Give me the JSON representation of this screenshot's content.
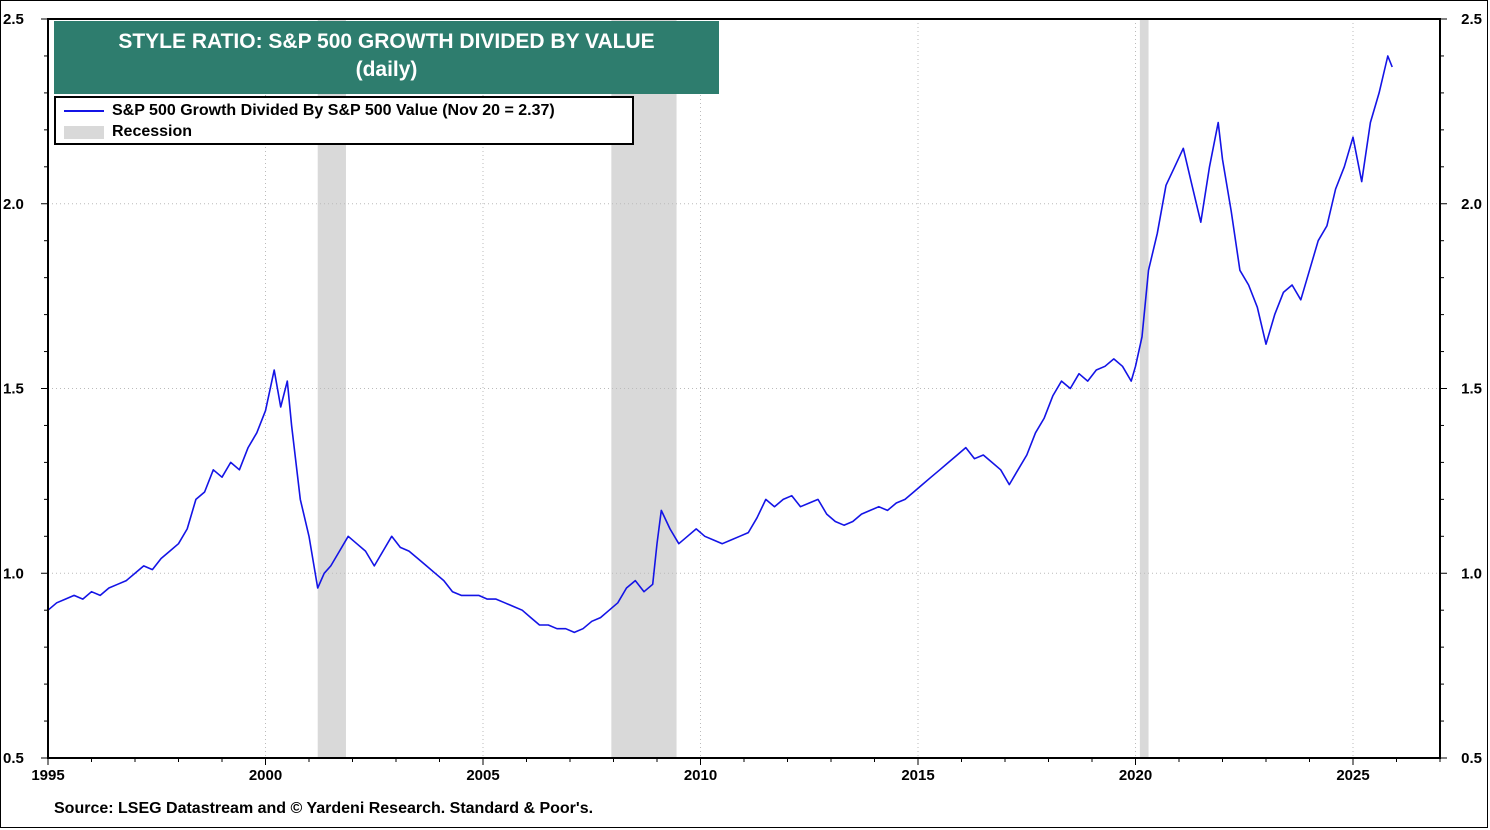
{
  "title": {
    "line1": "STYLE RATIO: S&P 500 GROWTH DIVIDED BY VALUE",
    "line2": "(daily)"
  },
  "legend": {
    "series_label": "S&P 500 Growth Divided By S&P 500 Value (Nov 20 = 2.37)",
    "recession_label": "Recession"
  },
  "source": "Source: LSEG Datastream and © Yardeni Research. Standard & Poor's.",
  "colors": {
    "line": "#1414e6",
    "recession": "#d9d9d9",
    "title_bg": "#2e7d6e"
  },
  "chart_data": {
    "type": "line",
    "title": "STYLE RATIO: S&P 500 GROWTH DIVIDED BY VALUE (daily)",
    "xlabel": "",
    "ylabel": "",
    "xlim": [
      1995,
      2027
    ],
    "ylim": [
      0.5,
      2.5
    ],
    "x_ticks": [
      1995,
      2000,
      2005,
      2010,
      2015,
      2020,
      2025
    ],
    "y_ticks": [
      0.5,
      1.0,
      1.5,
      2.0,
      2.5
    ],
    "y_tick_labels": [
      "0.5",
      "1.0",
      "1.5",
      "2.0",
      "2.5"
    ],
    "grid": true,
    "recessions": [
      [
        2001.2,
        2001.85
      ],
      [
        2007.95,
        2009.45
      ],
      [
        2020.1,
        2020.3
      ]
    ],
    "series": [
      {
        "name": "S&P 500 Growth Divided By S&P 500 Value (Nov 20 = 2.37)",
        "x": [
          1995.0,
          1995.2,
          1995.4,
          1995.6,
          1995.8,
          1996.0,
          1996.2,
          1996.4,
          1996.6,
          1996.8,
          1997.0,
          1997.2,
          1997.4,
          1997.6,
          1997.8,
          1998.0,
          1998.2,
          1998.4,
          1998.6,
          1998.8,
          1999.0,
          1999.2,
          1999.4,
          1999.6,
          1999.8,
          2000.0,
          2000.2,
          2000.35,
          2000.5,
          2000.6,
          2000.8,
          2001.0,
          2001.2,
          2001.35,
          2001.5,
          2001.7,
          2001.9,
          2002.1,
          2002.3,
          2002.5,
          2002.7,
          2002.9,
          2003.1,
          2003.3,
          2003.5,
          2003.7,
          2003.9,
          2004.1,
          2004.3,
          2004.5,
          2004.7,
          2004.9,
          2005.1,
          2005.3,
          2005.5,
          2005.7,
          2005.9,
          2006.1,
          2006.3,
          2006.5,
          2006.7,
          2006.9,
          2007.1,
          2007.3,
          2007.5,
          2007.7,
          2007.9,
          2008.1,
          2008.3,
          2008.5,
          2008.7,
          2008.9,
          2009.0,
          2009.1,
          2009.3,
          2009.5,
          2009.7,
          2009.9,
          2010.1,
          2010.3,
          2010.5,
          2010.7,
          2010.9,
          2011.1,
          2011.3,
          2011.5,
          2011.7,
          2011.9,
          2012.1,
          2012.3,
          2012.5,
          2012.7,
          2012.9,
          2013.1,
          2013.3,
          2013.5,
          2013.7,
          2013.9,
          2014.1,
          2014.3,
          2014.5,
          2014.7,
          2014.9,
          2015.1,
          2015.3,
          2015.5,
          2015.7,
          2015.9,
          2016.1,
          2016.3,
          2016.5,
          2016.7,
          2016.9,
          2017.1,
          2017.3,
          2017.5,
          2017.7,
          2017.9,
          2018.1,
          2018.3,
          2018.5,
          2018.7,
          2018.9,
          2019.1,
          2019.3,
          2019.5,
          2019.7,
          2019.9,
          2020.0,
          2020.15,
          2020.3,
          2020.5,
          2020.7,
          2020.9,
          2021.1,
          2021.3,
          2021.5,
          2021.7,
          2021.9,
          2022.0,
          2022.2,
          2022.4,
          2022.6,
          2022.8,
          2023.0,
          2023.2,
          2023.4,
          2023.6,
          2023.8,
          2024.0,
          2024.2,
          2024.4,
          2024.6,
          2024.8,
          2025.0,
          2025.2,
          2025.4,
          2025.6,
          2025.8,
          2025.9
        ],
        "values": [
          0.9,
          0.92,
          0.93,
          0.94,
          0.93,
          0.95,
          0.94,
          0.96,
          0.97,
          0.98,
          1.0,
          1.02,
          1.01,
          1.04,
          1.06,
          1.08,
          1.12,
          1.2,
          1.22,
          1.28,
          1.26,
          1.3,
          1.28,
          1.34,
          1.38,
          1.44,
          1.55,
          1.45,
          1.52,
          1.4,
          1.2,
          1.1,
          0.96,
          1.0,
          1.02,
          1.06,
          1.1,
          1.08,
          1.06,
          1.02,
          1.06,
          1.1,
          1.07,
          1.06,
          1.04,
          1.02,
          1.0,
          0.98,
          0.95,
          0.94,
          0.94,
          0.94,
          0.93,
          0.93,
          0.92,
          0.91,
          0.9,
          0.88,
          0.86,
          0.86,
          0.85,
          0.85,
          0.84,
          0.85,
          0.87,
          0.88,
          0.9,
          0.92,
          0.96,
          0.98,
          0.95,
          0.97,
          1.08,
          1.17,
          1.12,
          1.08,
          1.1,
          1.12,
          1.1,
          1.09,
          1.08,
          1.09,
          1.1,
          1.11,
          1.15,
          1.2,
          1.18,
          1.2,
          1.21,
          1.18,
          1.19,
          1.2,
          1.16,
          1.14,
          1.13,
          1.14,
          1.16,
          1.17,
          1.18,
          1.17,
          1.19,
          1.2,
          1.22,
          1.24,
          1.26,
          1.28,
          1.3,
          1.32,
          1.34,
          1.31,
          1.32,
          1.3,
          1.28,
          1.24,
          1.28,
          1.32,
          1.38,
          1.42,
          1.48,
          1.52,
          1.5,
          1.54,
          1.52,
          1.55,
          1.56,
          1.58,
          1.56,
          1.52,
          1.56,
          1.64,
          1.82,
          1.92,
          2.05,
          2.1,
          2.15,
          2.05,
          1.95,
          2.1,
          2.22,
          2.12,
          1.98,
          1.82,
          1.78,
          1.72,
          1.62,
          1.7,
          1.76,
          1.78,
          1.74,
          1.82,
          1.9,
          1.94,
          2.04,
          2.1,
          2.18,
          2.06,
          2.22,
          2.3,
          2.4,
          2.37
        ]
      }
    ]
  }
}
